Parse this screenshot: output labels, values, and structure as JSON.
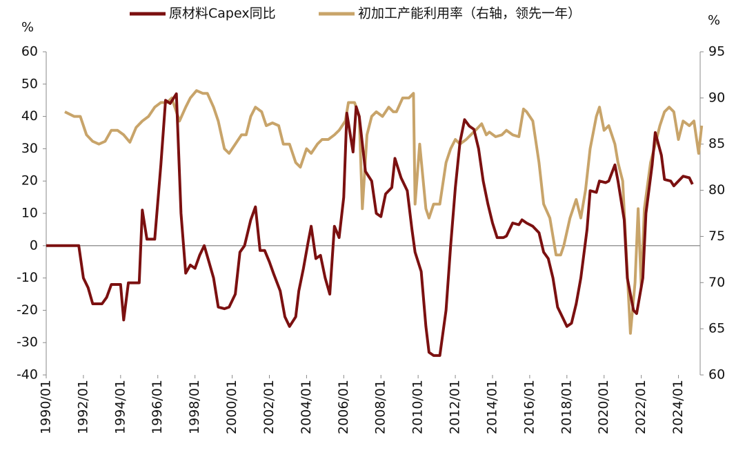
{
  "chart_data": {
    "type": "line",
    "y_unit": "%",
    "y2_unit": "%",
    "ylim": [
      -40,
      60
    ],
    "yticks": [
      -40,
      -30,
      -20,
      -10,
      0,
      10,
      20,
      30,
      40,
      50,
      60
    ],
    "y2lim": [
      60,
      95
    ],
    "y2ticks": [
      60,
      65,
      70,
      75,
      80,
      85,
      90,
      95
    ],
    "xlim": [
      "1990/01",
      "2025/03"
    ],
    "xticks": [
      "1990/01",
      "1992/01",
      "1994/01",
      "1996/01",
      "1998/01",
      "2000/01",
      "2002/01",
      "2004/01",
      "2006/01",
      "2008/01",
      "2010/01",
      "2012/01",
      "2014/01",
      "2016/01",
      "2018/01",
      "2020/01",
      "2022/01",
      "2024/01"
    ],
    "series": [
      {
        "name": "原材料Capex同比",
        "color": "#7b1010",
        "x": [
          "1990/01",
          "1991/10",
          "1992/01",
          "1992/04",
          "1992/07",
          "1993/01",
          "1993/04",
          "1993/07",
          "1994/01",
          "1994/03",
          "1994/06",
          "1995/01",
          "1995/03",
          "1995/06",
          "1995/11",
          "1996/03",
          "1996/06",
          "1996/09",
          "1997/01",
          "1997/04",
          "1997/07",
          "1997/10",
          "1998/01",
          "1998/04",
          "1998/07",
          "1998/10",
          "1999/01",
          "1999/04",
          "1999/08",
          "1999/11",
          "2000/03",
          "2000/06",
          "2000/09",
          "2001/01",
          "2001/04",
          "2001/07",
          "2001/10",
          "2002/01",
          "2002/04",
          "2002/08",
          "2002/11",
          "2003/02",
          "2003/06",
          "2003/08",
          "2003/11",
          "2004/02",
          "2004/04",
          "2004/07",
          "2004/10",
          "2005/01",
          "2005/04",
          "2005/07",
          "2005/10",
          "2006/01",
          "2006/03",
          "2006/07",
          "2006/09",
          "2006/11",
          "2007/03",
          "2007/07",
          "2007/10",
          "2008/01",
          "2008/04",
          "2008/08",
          "2008/10",
          "2009/02",
          "2009/06",
          "2009/09",
          "2009/11",
          "2010/03",
          "2010/06",
          "2010/08",
          "2010/11",
          "2011/03",
          "2011/07",
          "2011/10",
          "2012/01",
          "2012/04",
          "2012/07",
          "2012/10",
          "2013/01",
          "2013/04",
          "2013/07",
          "2013/10",
          "2014/01",
          "2014/04",
          "2014/08",
          "2014/10",
          "2015/02",
          "2015/06",
          "2015/08",
          "2015/11",
          "2016/03",
          "2016/07",
          "2016/10",
          "2017/01",
          "2017/04",
          "2017/07",
          "2017/10",
          "2018/01",
          "2018/04",
          "2018/07",
          "2018/10",
          "2019/02",
          "2019/04",
          "2019/08",
          "2019/10",
          "2020/02",
          "2020/04",
          "2020/08",
          "2020/10",
          "2021/02",
          "2021/04",
          "2021/08",
          "2021/10",
          "2022/02",
          "2022/04",
          "2022/08",
          "2022/10",
          "2023/02",
          "2023/04",
          "2023/08",
          "2023/10",
          "2024/02",
          "2024/04",
          "2024/08",
          "2024/10"
        ],
        "values": [
          0,
          0,
          -10,
          -13,
          -18,
          -18,
          -16,
          -12,
          -12,
          -23,
          -11.5,
          -11.5,
          11,
          2,
          2,
          25,
          45,
          44,
          47,
          10,
          -8.5,
          -6,
          -7,
          -3,
          0,
          -5,
          -10,
          -19,
          -19.5,
          -19,
          -15,
          -2,
          0,
          8,
          12,
          -1.5,
          -1.5,
          -5,
          -9,
          -14,
          -22,
          -25,
          -22,
          -14,
          -7,
          1,
          6,
          -4,
          -3,
          -10,
          -15,
          6,
          2.5,
          15,
          41,
          29,
          43,
          40,
          23,
          20,
          10,
          9,
          16,
          18,
          27,
          21,
          17,
          5,
          -2,
          -8,
          -25,
          -33,
          -34,
          -34,
          -20,
          0,
          18,
          32,
          39,
          37,
          36,
          30,
          20,
          13,
          7,
          2.5,
          2.5,
          3,
          7,
          6.5,
          8,
          7,
          6,
          4,
          -2,
          -4,
          -10,
          -19,
          -22,
          -25,
          -24,
          -18,
          -10,
          5,
          17,
          16.5,
          20,
          19.5,
          20,
          25,
          20,
          8,
          -10,
          -20,
          -21,
          -10,
          10,
          25,
          35,
          28,
          20.5,
          20,
          18.5,
          20.5,
          21.5,
          21,
          19
        ]
      },
      {
        "name": "初加工产能利用率（右轴，领先一年）",
        "color": "#c8a46a",
        "axis": "y2",
        "x": [
          "1991/01",
          "1991/07",
          "1991/11",
          "1992/03",
          "1992/07",
          "1992/11",
          "1993/03",
          "1993/07",
          "1993/11",
          "1994/03",
          "1994/07",
          "1994/11",
          "1995/03",
          "1995/07",
          "1995/11",
          "1996/03",
          "1996/07",
          "1996/10",
          "1997/03",
          "1997/07",
          "1997/10",
          "1998/02",
          "1998/06",
          "1998/09",
          "1999/01",
          "1999/04",
          "1999/08",
          "1999/11",
          "2000/03",
          "2000/07",
          "2000/10",
          "2001/01",
          "2001/04",
          "2001/08",
          "2001/11",
          "2002/03",
          "2002/07",
          "2002/10",
          "2003/02",
          "2003/06",
          "2003/09",
          "2004/01",
          "2004/04",
          "2004/08",
          "2004/11",
          "2005/03",
          "2005/07",
          "2005/10",
          "2006/02",
          "2006/04",
          "2006/08",
          "2006/11",
          "2007/01",
          "2007/04",
          "2007/07",
          "2007/10",
          "2008/02",
          "2008/06",
          "2008/09",
          "2008/11",
          "2009/03",
          "2009/07",
          "2009/10",
          "2009/11",
          "2010/02",
          "2010/06",
          "2010/08",
          "2010/11",
          "2011/03",
          "2011/07",
          "2011/10",
          "2012/01",
          "2012/04",
          "2012/08",
          "2012/11",
          "2013/02",
          "2013/06",
          "2013/09",
          "2013/11",
          "2014/03",
          "2014/07",
          "2014/10",
          "2015/02",
          "2015/06",
          "2015/09",
          "2015/11",
          "2016/03",
          "2016/07",
          "2016/10",
          "2017/02",
          "2017/06",
          "2017/09",
          "2017/11",
          "2018/03",
          "2018/07",
          "2018/10",
          "2019/01",
          "2019/04",
          "2019/08",
          "2019/10",
          "2020/01",
          "2020/04",
          "2020/08",
          "2020/10",
          "2021/01",
          "2021/04",
          "2021/06",
          "2021/09",
          "2021/11",
          "2022/01",
          "2022/03",
          "2022/07",
          "2022/10",
          "2023/01",
          "2023/04",
          "2023/07",
          "2023/10",
          "2024/01",
          "2024/04",
          "2024/08",
          "2024/11",
          "2025/02",
          "2025/04"
        ],
        "values": [
          88.5,
          88,
          88,
          86,
          85.3,
          85,
          85.3,
          86.5,
          86.5,
          86,
          85.2,
          86.8,
          87.5,
          88,
          89,
          89.5,
          89.5,
          90,
          87.5,
          89,
          90,
          90.8,
          90.5,
          90.5,
          89,
          87.5,
          84.5,
          84,
          85,
          86,
          86,
          88,
          89,
          88.5,
          87,
          87.3,
          87,
          85,
          85,
          83,
          82.5,
          84.5,
          84,
          85,
          85.5,
          85.5,
          86,
          86.5,
          87.5,
          89.5,
          89.5,
          88,
          78,
          86,
          88,
          88.5,
          88,
          89,
          88.5,
          88.5,
          90,
          90,
          90.5,
          78.5,
          85,
          78,
          77,
          78.5,
          78.5,
          83,
          84.5,
          85.5,
          85,
          85.5,
          86,
          86.5,
          87.2,
          86,
          86.3,
          85.8,
          86,
          86.5,
          86,
          85.8,
          88.8,
          88.5,
          87.5,
          83,
          78.5,
          77,
          73,
          73,
          74,
          77,
          79,
          77,
          80,
          84.5,
          88,
          89,
          86.5,
          87,
          85,
          83,
          81,
          71,
          64.5,
          70,
          78,
          69.5,
          78,
          83,
          85,
          87,
          88.5,
          89,
          88.5,
          85.5,
          87.5,
          87,
          87.5,
          84,
          87
        ]
      }
    ]
  }
}
